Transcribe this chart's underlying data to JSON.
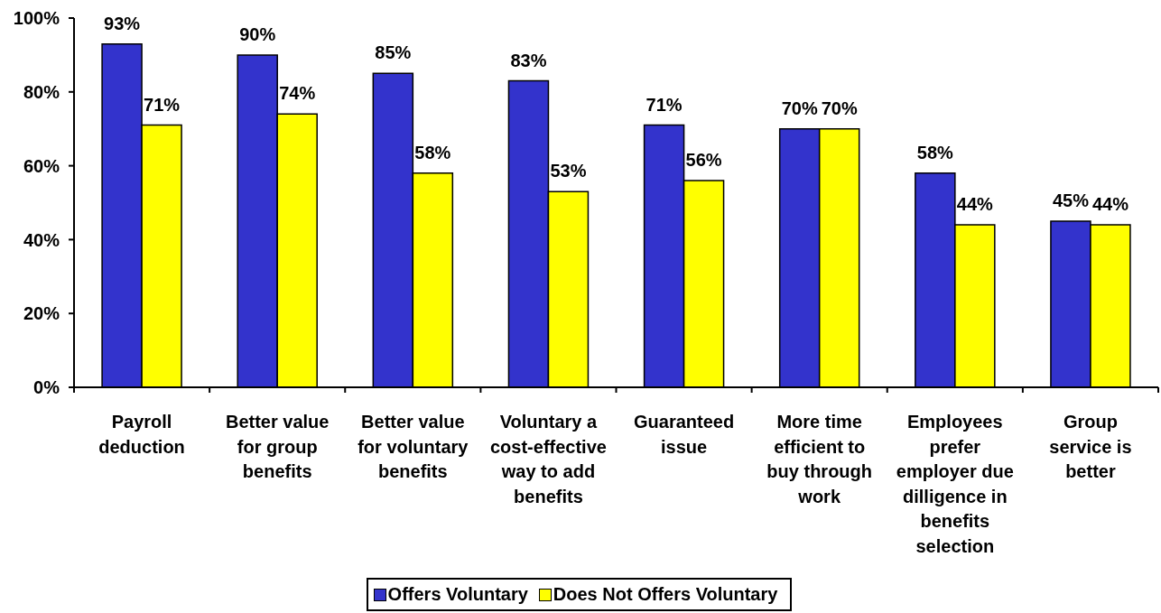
{
  "chart_data": {
    "type": "bar",
    "categories": [
      "Payroll deduction",
      "Better value for group benefits",
      "Better value for voluntary benefits",
      "Voluntary a cost-effective way to add benefits",
      "Guaranteed issue",
      "More time efficient to buy through work",
      "Employees prefer employer due dilligence in benefits selection",
      "Group service is better"
    ],
    "series": [
      {
        "name": "Offers Voluntary",
        "color": "#3333cc",
        "values": [
          93,
          90,
          85,
          83,
          71,
          70,
          58,
          45
        ],
        "value_labels": [
          "93%",
          "90%",
          "85%",
          "83%",
          "71%",
          "70%",
          "58%",
          "45%"
        ]
      },
      {
        "name": "Does Not Offers Voluntary",
        "color": "#ffff00",
        "values": [
          71,
          74,
          58,
          53,
          56,
          70,
          44,
          44
        ],
        "value_labels": [
          "71%",
          "74%",
          "58%",
          "53%",
          "56%",
          "70%",
          "44%",
          "44%"
        ]
      }
    ],
    "ylim": [
      0,
      100
    ],
    "yticks": [
      {
        "value": 0,
        "label": "0%"
      },
      {
        "value": 20,
        "label": "20%"
      },
      {
        "value": 40,
        "label": "40%"
      },
      {
        "value": 60,
        "label": "60%"
      },
      {
        "value": 80,
        "label": "80%"
      },
      {
        "value": 100,
        "label": "100%"
      }
    ],
    "legend": "bottom"
  }
}
